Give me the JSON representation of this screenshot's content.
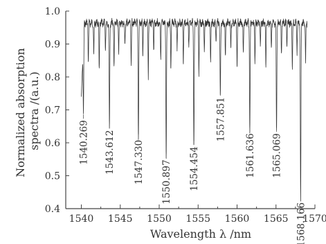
{
  "chart_data": {
    "type": "line",
    "xlabel": "Wavelength λ /nm",
    "ylabel": "Normalized absorption spectra /(a.u.)",
    "xlim": [
      1538,
      1570
    ],
    "ylim": [
      0.4,
      1.0
    ],
    "x_ticks": [
      "1540",
      "1545",
      "1550",
      "1555",
      "1560",
      "1565",
      "1570"
    ],
    "y_ticks": [
      "0.4",
      "0.5",
      "0.6",
      "0.7",
      "0.8",
      "0.9",
      "1.0"
    ],
    "grid": false,
    "spectrum_range": [
      1540,
      1569
    ],
    "baseline": 0.98,
    "absorption_lines": [
      {
        "label": "1540.269",
        "x": 1540.269,
        "y": 0.69
      },
      {
        "label": "1543.612",
        "x": 1543.612,
        "y": 0.66
      },
      {
        "label": "1547.330",
        "x": 1547.33,
        "y": 0.63
      },
      {
        "label": "1550.897",
        "x": 1550.897,
        "y": 0.57
      },
      {
        "label": "1554.454",
        "x": 1554.454,
        "y": 0.61
      },
      {
        "label": "1557.851",
        "x": 1557.851,
        "y": 0.76
      },
      {
        "label": "1561.636",
        "x": 1561.636,
        "y": 0.65
      },
      {
        "label": "1565.069",
        "x": 1565.069,
        "y": 0.65
      },
      {
        "label": "1568.166",
        "x": 1568.166,
        "y": 0.44
      }
    ],
    "secondary_dips": [
      {
        "x": 1540.9,
        "y": 0.86
      },
      {
        "x": 1541.6,
        "y": 0.88
      },
      {
        "x": 1542.3,
        "y": 0.83
      },
      {
        "x": 1543.1,
        "y": 0.9
      },
      {
        "x": 1544.2,
        "y": 0.84
      },
      {
        "x": 1544.8,
        "y": 0.89
      },
      {
        "x": 1545.6,
        "y": 0.91
      },
      {
        "x": 1546.4,
        "y": 0.85
      },
      {
        "x": 1547.9,
        "y": 0.88
      },
      {
        "x": 1548.6,
        "y": 0.82
      },
      {
        "x": 1549.3,
        "y": 0.9
      },
      {
        "x": 1550.2,
        "y": 0.87
      },
      {
        "x": 1551.5,
        "y": 0.84
      },
      {
        "x": 1552.3,
        "y": 0.9
      },
      {
        "x": 1553.1,
        "y": 0.86
      },
      {
        "x": 1553.8,
        "y": 0.91
      },
      {
        "x": 1555.1,
        "y": 0.83
      },
      {
        "x": 1555.8,
        "y": 0.9
      },
      {
        "x": 1556.6,
        "y": 0.86
      },
      {
        "x": 1557.3,
        "y": 0.92
      },
      {
        "x": 1558.5,
        "y": 0.87
      },
      {
        "x": 1559.2,
        "y": 0.91
      },
      {
        "x": 1560.0,
        "y": 0.85
      },
      {
        "x": 1560.8,
        "y": 0.89
      },
      {
        "x": 1562.3,
        "y": 0.86
      },
      {
        "x": 1563.0,
        "y": 0.91
      },
      {
        "x": 1563.7,
        "y": 0.84
      },
      {
        "x": 1564.4,
        "y": 0.9
      },
      {
        "x": 1565.7,
        "y": 0.88
      },
      {
        "x": 1566.4,
        "y": 0.91
      },
      {
        "x": 1567.1,
        "y": 0.84
      },
      {
        "x": 1567.7,
        "y": 0.89
      },
      {
        "x": 1568.8,
        "y": 0.86
      }
    ]
  }
}
